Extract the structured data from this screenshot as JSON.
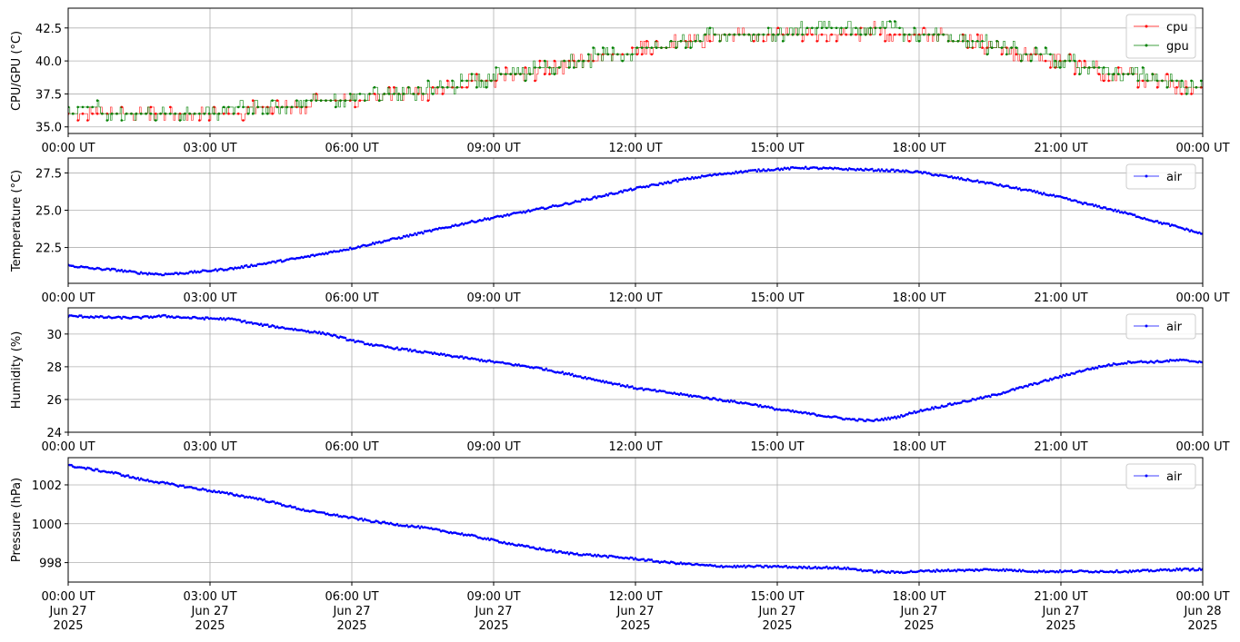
{
  "chart_data": [
    {
      "type": "line",
      "xlabel": "",
      "ylabel": "CPU/GPU (°C)",
      "xlim": [
        0,
        24
      ],
      "ylim": [
        34.5,
        44.0
      ],
      "yticks": [
        35.0,
        37.5,
        40.0,
        42.5
      ],
      "ytick_labels": [
        "35.0",
        "37.5",
        "40.0",
        "42.5"
      ],
      "grid": true,
      "legend": "top-right",
      "series": [
        {
          "name": "cpu",
          "color": "#ff0000",
          "x": [
            0,
            0.5,
            1,
            1.5,
            2,
            2.5,
            3,
            3.5,
            4,
            4.5,
            5,
            5.5,
            6,
            6.5,
            7,
            7.5,
            8,
            8.5,
            9,
            9.5,
            10,
            10.5,
            11,
            11.5,
            12,
            12.5,
            13,
            13.5,
            14,
            14.5,
            15,
            15.5,
            16,
            16.5,
            17,
            17.5,
            18,
            18.5,
            19,
            19.5,
            20,
            20.5,
            21,
            21.5,
            22,
            22.5,
            23,
            23.5,
            24
          ],
          "y": [
            36.0,
            36.2,
            35.8,
            35.9,
            35.8,
            36.0,
            36.1,
            36.2,
            36.3,
            36.5,
            36.7,
            36.9,
            37.1,
            37.3,
            37.5,
            37.7,
            37.9,
            38.3,
            38.7,
            39.0,
            39.3,
            39.7,
            40.1,
            40.5,
            40.8,
            41.1,
            41.4,
            41.7,
            41.9,
            42.0,
            42.1,
            42.2,
            42.2,
            42.2,
            42.3,
            42.2,
            42.0,
            41.8,
            41.5,
            41.1,
            40.7,
            40.3,
            40.0,
            39.5,
            39.0,
            38.8,
            38.6,
            38.1,
            37.8
          ]
        },
        {
          "name": "gpu",
          "color": "#008000",
          "x": [
            0,
            0.5,
            1,
            1.5,
            2,
            2.5,
            3,
            3.5,
            4,
            4.5,
            5,
            5.5,
            6,
            6.5,
            7,
            7.5,
            8,
            8.5,
            9,
            9.5,
            10,
            10.5,
            11,
            11.5,
            12,
            12.5,
            13,
            13.5,
            14,
            14.5,
            15,
            15.5,
            16,
            16.5,
            17,
            17.5,
            18,
            18.5,
            19,
            19.5,
            20,
            20.5,
            21,
            21.5,
            22,
            22.5,
            23,
            23.5,
            24
          ],
          "y": [
            36.3,
            36.4,
            36.1,
            36.0,
            35.9,
            36.0,
            36.2,
            36.3,
            36.4,
            36.6,
            36.8,
            37.0,
            37.2,
            37.4,
            37.6,
            37.8,
            38.1,
            38.4,
            38.8,
            39.1,
            39.5,
            39.8,
            40.2,
            40.5,
            40.8,
            41.1,
            41.5,
            41.8,
            42.0,
            42.1,
            42.2,
            42.3,
            42.4,
            42.3,
            42.4,
            42.3,
            42.1,
            41.9,
            41.6,
            41.2,
            40.8,
            40.5,
            40.1,
            39.6,
            39.2,
            38.9,
            38.6,
            38.3,
            38.0
          ]
        }
      ]
    },
    {
      "type": "line",
      "xlabel": "",
      "ylabel": "Temperature (°C)",
      "xlim": [
        0,
        24
      ],
      "ylim": [
        20.1,
        28.5
      ],
      "yticks": [
        22.5,
        25.0,
        27.5
      ],
      "ytick_labels": [
        "22.5",
        "25.0",
        "27.5"
      ],
      "grid": true,
      "legend": "top-right",
      "series": [
        {
          "name": "air",
          "color": "#0000ff",
          "x": [
            0,
            0.5,
            1,
            1.5,
            2,
            2.5,
            3,
            3.5,
            4,
            4.5,
            5,
            5.5,
            6,
            6.5,
            7,
            7.5,
            8,
            8.5,
            9,
            9.5,
            10,
            10.5,
            11,
            11.5,
            12,
            12.5,
            13,
            13.5,
            14,
            14.5,
            15,
            15.5,
            16,
            16.5,
            17,
            17.5,
            18,
            18.5,
            19,
            19.5,
            20,
            20.5,
            21,
            21.5,
            22,
            22.5,
            23,
            23.5,
            24
          ],
          "y": [
            21.3,
            21.1,
            21.0,
            20.8,
            20.7,
            20.8,
            20.95,
            21.1,
            21.35,
            21.6,
            21.85,
            22.15,
            22.45,
            22.8,
            23.15,
            23.5,
            23.85,
            24.2,
            24.5,
            24.8,
            25.1,
            25.4,
            25.75,
            26.1,
            26.45,
            26.75,
            27.05,
            27.3,
            27.5,
            27.65,
            27.75,
            27.85,
            27.8,
            27.75,
            27.7,
            27.65,
            27.55,
            27.3,
            27.05,
            26.8,
            26.5,
            26.2,
            25.85,
            25.45,
            25.1,
            24.7,
            24.25,
            23.85,
            23.4
          ]
        }
      ]
    },
    {
      "type": "line",
      "xlabel": "",
      "ylabel": "Humidity (%)",
      "xlim": [
        0,
        24
      ],
      "ylim": [
        24.0,
        31.6
      ],
      "yticks": [
        24,
        26,
        28,
        30
      ],
      "ytick_labels": [
        "24",
        "26",
        "28",
        "30"
      ],
      "grid": true,
      "legend": "top-right",
      "series": [
        {
          "name": "air",
          "color": "#0000ff",
          "x": [
            0,
            0.5,
            1,
            1.5,
            2,
            2.5,
            3,
            3.5,
            4,
            4.5,
            5,
            5.5,
            6,
            6.5,
            7,
            7.5,
            8,
            8.5,
            9,
            9.5,
            10,
            10.5,
            11,
            11.5,
            12,
            12.5,
            13,
            13.5,
            14,
            14.5,
            15,
            15.5,
            16,
            16.5,
            17,
            17.5,
            18,
            18.5,
            19,
            19.5,
            20,
            20.5,
            21,
            21.5,
            22,
            22.5,
            23,
            23.5,
            24
          ],
          "y": [
            31.1,
            31.05,
            31.0,
            31.0,
            31.1,
            31.0,
            30.95,
            30.9,
            30.6,
            30.4,
            30.2,
            30.0,
            29.6,
            29.3,
            29.1,
            28.9,
            28.7,
            28.5,
            28.3,
            28.1,
            27.9,
            27.6,
            27.3,
            27.0,
            26.7,
            26.5,
            26.3,
            26.1,
            25.9,
            25.7,
            25.4,
            25.2,
            25.0,
            24.8,
            24.7,
            24.9,
            25.3,
            25.6,
            25.9,
            26.2,
            26.6,
            27.0,
            27.4,
            27.8,
            28.1,
            28.3,
            28.3,
            28.4,
            28.3
          ]
        }
      ]
    },
    {
      "type": "line",
      "xlabel": "",
      "ylabel": "Pressure (hPa)",
      "xlim": [
        0,
        24
      ],
      "ylim": [
        997.0,
        1003.4
      ],
      "yticks": [
        998,
        1000,
        1002
      ],
      "ytick_labels": [
        "998",
        "1000",
        "1002"
      ],
      "grid": true,
      "legend": "top-right",
      "series": [
        {
          "name": "air",
          "color": "#0000ff",
          "x": [
            0,
            0.5,
            1,
            1.5,
            2,
            2.5,
            3,
            3.5,
            4,
            4.5,
            5,
            5.5,
            6,
            6.5,
            7,
            7.5,
            8,
            8.5,
            9,
            9.5,
            10,
            10.5,
            11,
            11.5,
            12,
            12.5,
            13,
            13.5,
            14,
            14.5,
            15,
            15.5,
            16,
            16.5,
            17,
            17.5,
            18,
            18.5,
            19,
            19.5,
            20,
            20.5,
            21,
            21.5,
            22,
            22.5,
            23,
            23.5,
            24
          ],
          "y": [
            1003.0,
            1002.8,
            1002.6,
            1002.3,
            1002.1,
            1001.9,
            1001.7,
            1001.5,
            1001.3,
            1001.0,
            1000.7,
            1000.5,
            1000.3,
            1000.1,
            999.95,
            999.8,
            999.6,
            999.4,
            999.15,
            998.9,
            998.7,
            998.5,
            998.4,
            998.3,
            998.2,
            998.05,
            997.95,
            997.85,
            997.8,
            997.8,
            997.8,
            997.75,
            997.75,
            997.7,
            997.55,
            997.5,
            997.55,
            997.6,
            997.6,
            997.65,
            997.6,
            997.55,
            997.55,
            997.55,
            997.55,
            997.55,
            997.6,
            997.65,
            997.65
          ]
        }
      ]
    }
  ],
  "x_axis": {
    "tick_times": [
      "00:00 UT",
      "03:00 UT",
      "06:00 UT",
      "09:00 UT",
      "12:00 UT",
      "15:00 UT",
      "18:00 UT",
      "21:00 UT",
      "00:00 UT"
    ],
    "tick_days": [
      "Jun 27",
      "Jun 27",
      "Jun 27",
      "Jun 27",
      "Jun 27",
      "Jun 27",
      "Jun 27",
      "Jun 27",
      "Jun 28"
    ],
    "tick_years": [
      "2025",
      "2025",
      "2025",
      "2025",
      "2025",
      "2025",
      "2025",
      "2025",
      "2025"
    ],
    "tick_hours": [
      0,
      3,
      6,
      9,
      12,
      15,
      18,
      21,
      24
    ]
  }
}
